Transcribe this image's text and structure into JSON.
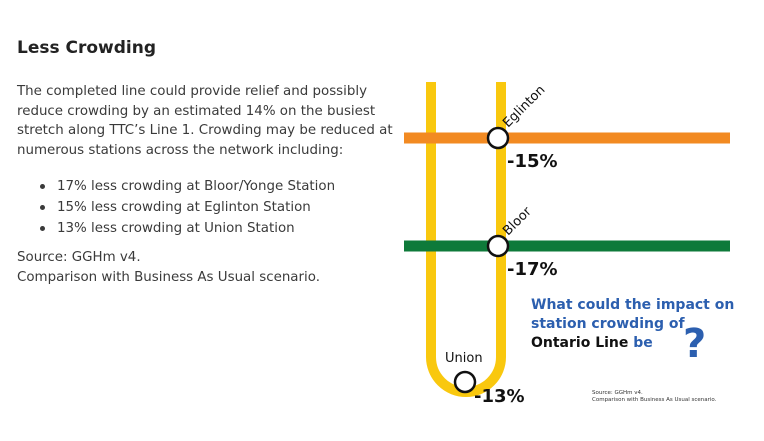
{
  "section": {
    "title": "Less Crowding",
    "intro": "The completed line could provide relief and possibly reduce crowding by an estimated 14% on the busiest stretch along TTC’s Line 1. Crowding may be reduced at numerous stations across the network including:",
    "bullets": [
      "17% less crowding at Bloor/Yonge Station",
      "15% less crowding at Eglinton Station",
      "13% less crowding at Union Station"
    ],
    "source_line1": "Source: GGHm v4.",
    "source_line2": "Comparison with Business As Usual scenario."
  },
  "graphic": {
    "stations": [
      {
        "name": "Eglinton",
        "change": "-15%"
      },
      {
        "name": "Bloor",
        "change": "-17%"
      },
      {
        "name": "Union",
        "change": "-13%"
      }
    ],
    "question_line1": "What could the impact on",
    "question_line2": "station crowding of",
    "question_line3_bold": "Ontario Line",
    "question_line3_rest": " be",
    "question_mark": "?",
    "source_line1": "Source: GGHm v4.",
    "source_line2": "Comparison with Business As Usual scenario.",
    "colors": {
      "line1_yellow": "#F9C80E",
      "eglinton_orange": "#F28A22",
      "bloor_green": "#0E7A3A",
      "question_blue": "#2C5FAF"
    }
  }
}
